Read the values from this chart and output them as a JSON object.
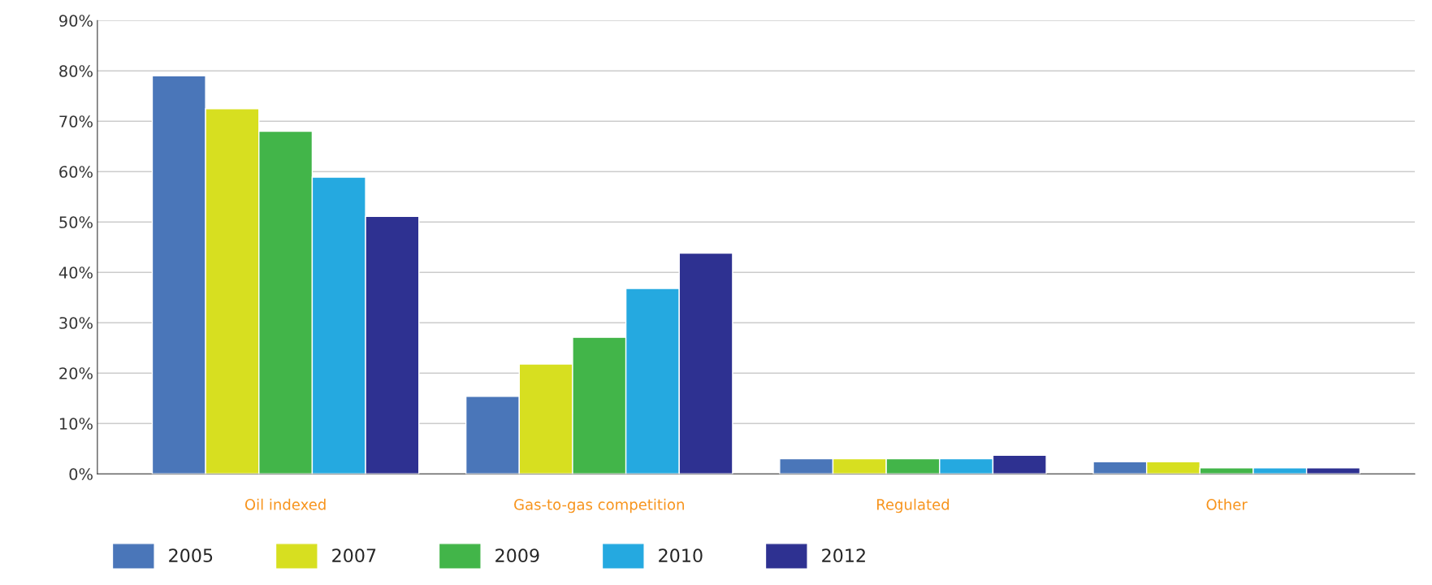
{
  "chart_data": {
    "type": "bar",
    "categories": [
      "Oil indexed",
      "Gas-to-gas competition",
      "Regulated",
      "Other"
    ],
    "series": [
      {
        "name": "2005",
        "color": "#4a76b9",
        "values": [
          79.0,
          15.4,
          3.0,
          2.4
        ]
      },
      {
        "name": "2007",
        "color": "#d7df20",
        "values": [
          72.5,
          21.8,
          3.0,
          2.4
        ]
      },
      {
        "name": "2009",
        "color": "#42b549",
        "values": [
          68.0,
          27.1,
          3.0,
          1.2
        ]
      },
      {
        "name": "2010",
        "color": "#25a9e0",
        "values": [
          58.9,
          36.8,
          3.0,
          1.2
        ]
      },
      {
        "name": "2012",
        "color": "#2e3191",
        "values": [
          51.1,
          43.8,
          3.7,
          1.2
        ]
      }
    ],
    "ylim": [
      0,
      90
    ],
    "yticks": [
      {
        "value": 0,
        "label": "0%"
      },
      {
        "value": 10,
        "label": "10%"
      },
      {
        "value": 20,
        "label": "20%"
      },
      {
        "value": 30,
        "label": "30%"
      },
      {
        "value": 40,
        "label": "40%"
      },
      {
        "value": 50,
        "label": "50%"
      },
      {
        "value": 60,
        "label": "60%"
      },
      {
        "value": 70,
        "label": "70%"
      },
      {
        "value": 80,
        "label": "80%"
      },
      {
        "value": 90,
        "label": "90%"
      }
    ],
    "grid": "y",
    "legend": "bottom"
  }
}
